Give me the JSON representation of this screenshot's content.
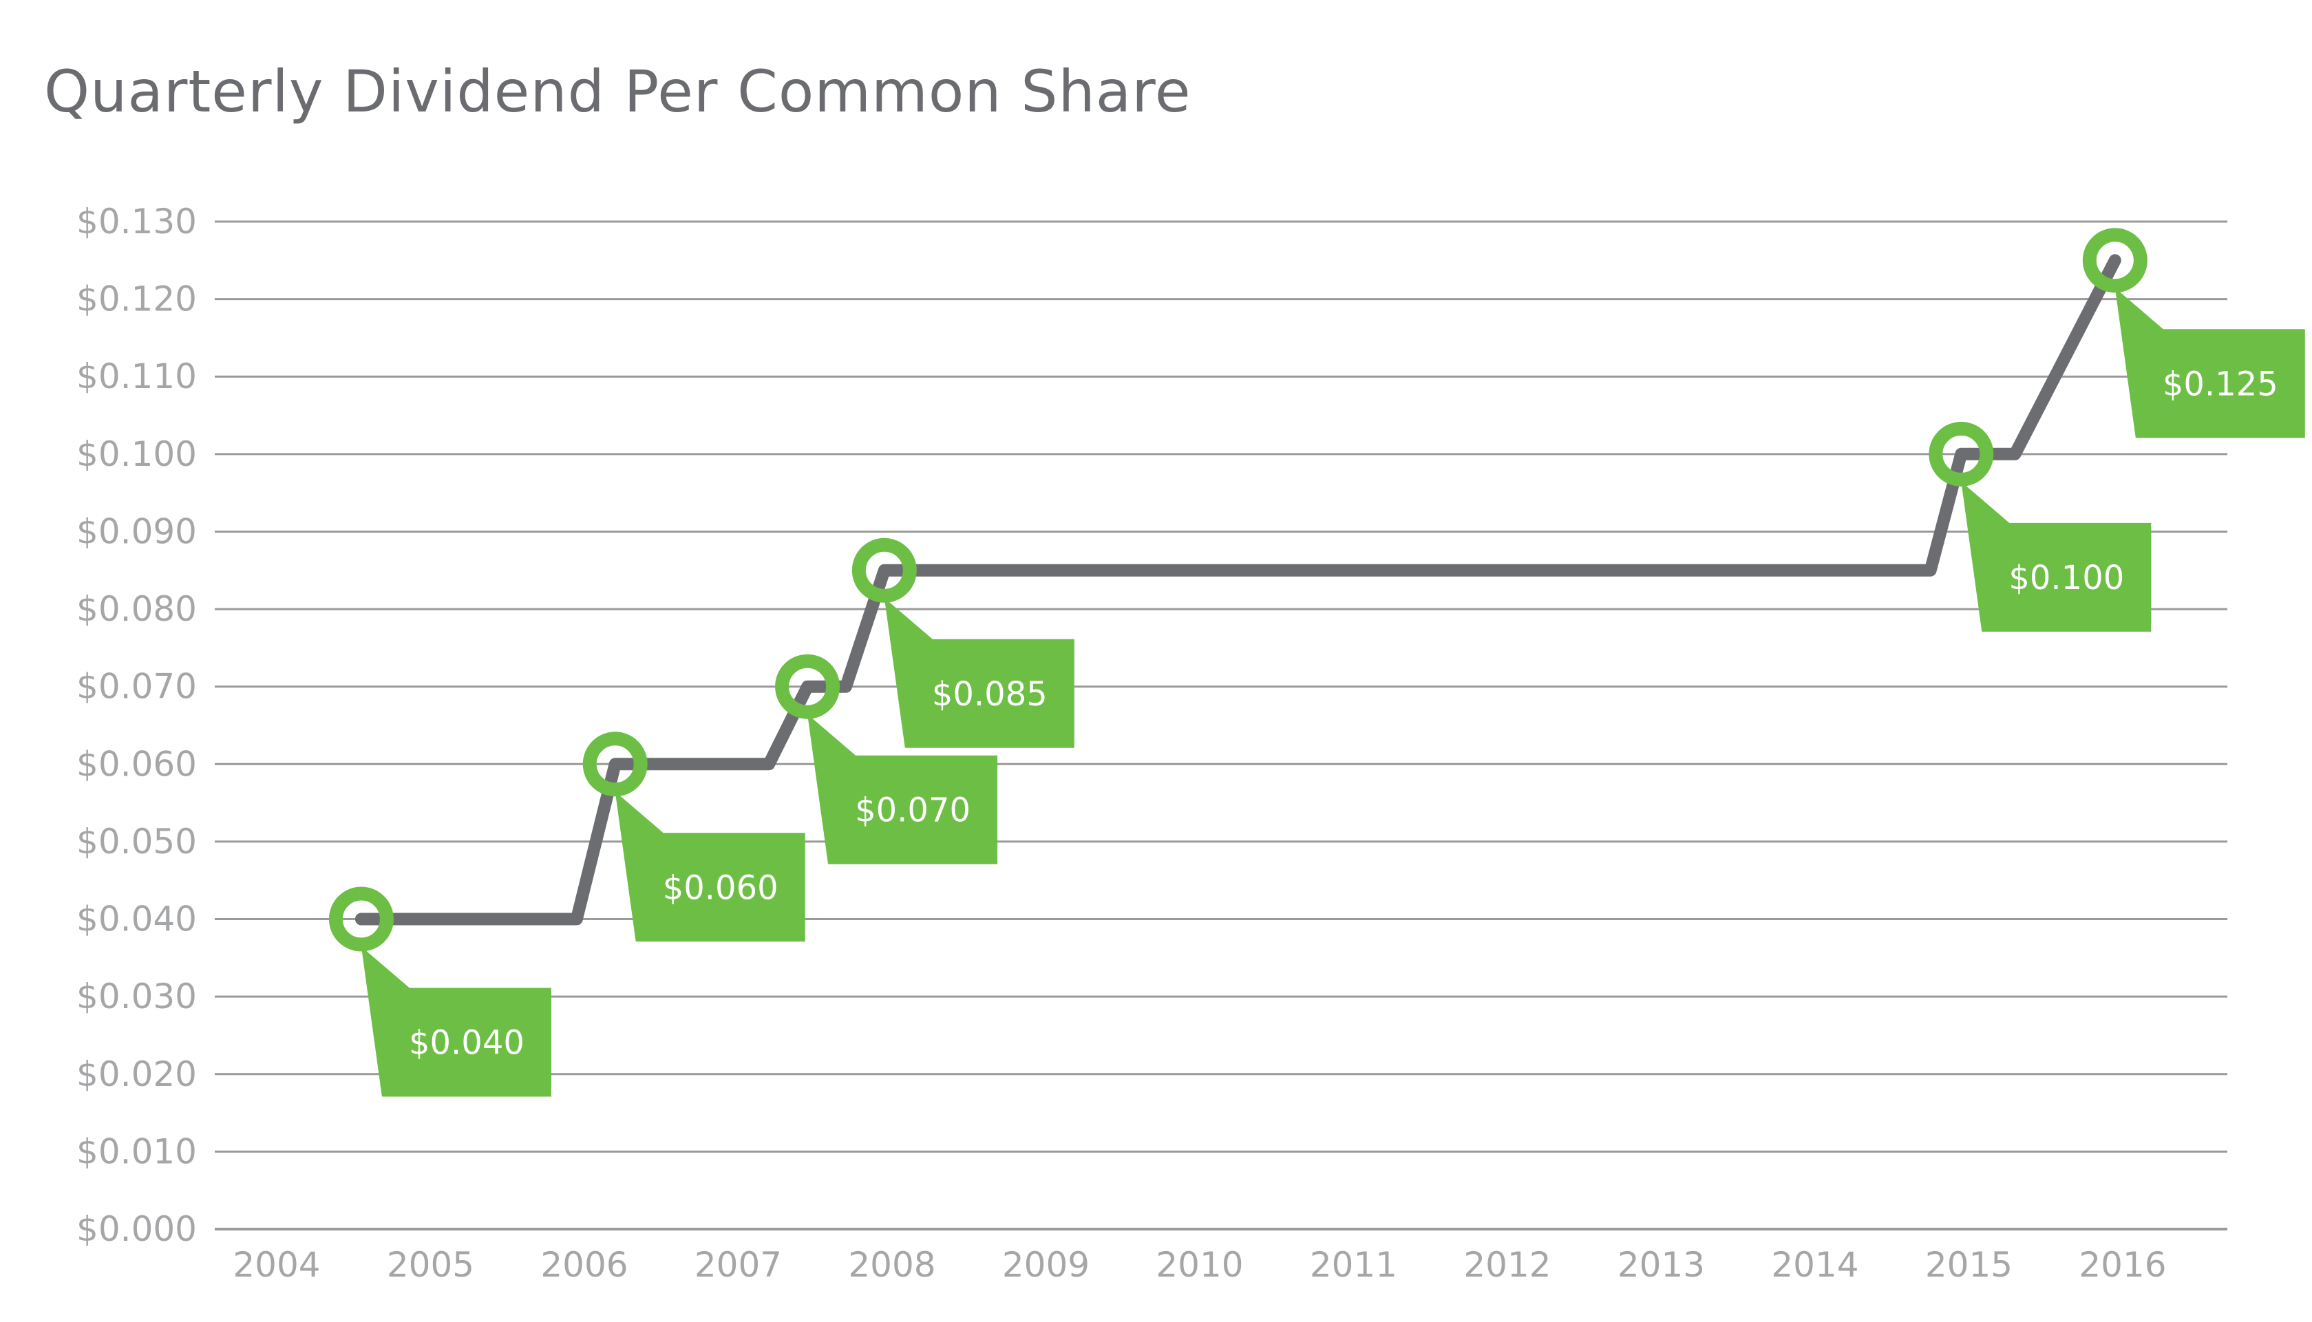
{
  "title": "Quarterly Dividend Per Common Share",
  "chart_data": {
    "type": "line",
    "title": "Quarterly Dividend Per Common Share",
    "xlabel": "",
    "ylabel": "",
    "grid": true,
    "legend": "none",
    "xlim": [
      2004,
      2016.6
    ],
    "ylim": [
      0,
      0.13
    ],
    "x_ticks": [
      "2004",
      "2005",
      "2006",
      "2007",
      "2008",
      "2009",
      "2010",
      "2011",
      "2012",
      "2013",
      "2014",
      "2015",
      "2016"
    ],
    "y_ticks": [
      "$0.000",
      "$0.010",
      "$0.020",
      "$0.030",
      "$0.040",
      "$0.050",
      "$0.060",
      "$0.070",
      "$0.080",
      "$0.090",
      "$0.100",
      "$0.110",
      "$0.120",
      "$0.130"
    ],
    "colors": {
      "line": "#6c6d70",
      "marker": "#6dbe45",
      "grid": "#9a9a9a",
      "tick_label": "#a5a6a8",
      "title": "#6b6c6f",
      "callout_text": "#ffffff"
    },
    "series": [
      {
        "points": [
          {
            "x": 2004.55,
            "y": 0.04
          },
          {
            "x": 2005.95,
            "y": 0.04
          },
          {
            "x": 2006.2,
            "y": 0.06
          },
          {
            "x": 2007.2,
            "y": 0.06
          },
          {
            "x": 2007.45,
            "y": 0.07
          },
          {
            "x": 2007.7,
            "y": 0.07
          },
          {
            "x": 2007.95,
            "y": 0.085
          },
          {
            "x": 2014.75,
            "y": 0.085
          },
          {
            "x": 2014.95,
            "y": 0.1
          },
          {
            "x": 2015.3,
            "y": 0.1
          },
          {
            "x": 2015.95,
            "y": 0.125
          }
        ]
      }
    ],
    "annotations": [
      {
        "x": 2004.55,
        "y": 0.04,
        "label": "$0.040"
      },
      {
        "x": 2006.2,
        "y": 0.06,
        "label": "$0.060"
      },
      {
        "x": 2007.45,
        "y": 0.07,
        "label": "$0.070"
      },
      {
        "x": 2007.95,
        "y": 0.085,
        "label": "$0.085"
      },
      {
        "x": 2014.95,
        "y": 0.1,
        "label": "$0.100"
      },
      {
        "x": 2015.95,
        "y": 0.125,
        "label": "$0.125"
      }
    ]
  }
}
